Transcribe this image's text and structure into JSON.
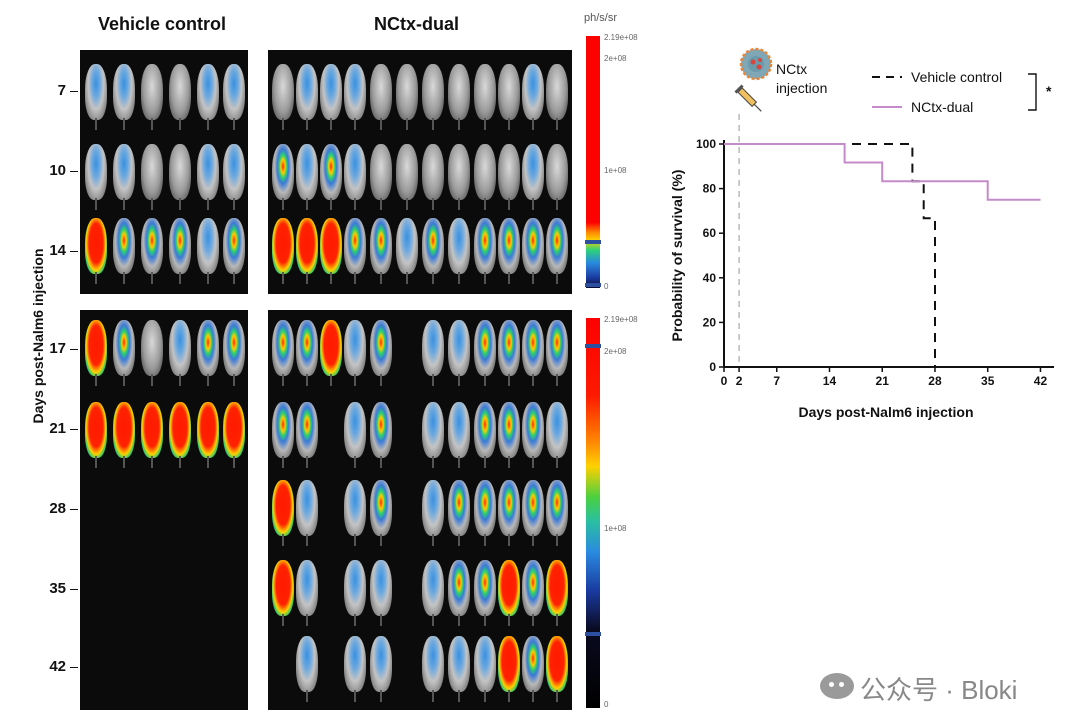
{
  "imaging": {
    "group_titles": [
      "Vehicle control",
      "NCtx-dual"
    ],
    "y_axis_label": "Days post-Nalm6 injection",
    "days": [
      "7",
      "10",
      "14",
      "17",
      "21",
      "28",
      "35",
      "42"
    ],
    "colorbar_unit": "ph/s/sr",
    "colorbar_top": {
      "max_label": "2.19e+08",
      "tick_high": "2e+08",
      "tick_mid": "1e+08",
      "tick_low": "0"
    },
    "colorbar_bottom": {
      "max_label": "2.19e+08",
      "tick_high": "2e+08",
      "tick_mid": "1e+08",
      "tick_low": "0"
    },
    "signal_colors": [
      "#ff0000",
      "#ffd000",
      "#33cc66",
      "#2a6ae0",
      "#000000"
    ]
  },
  "annotation": {
    "line1": "NCtx",
    "line2": "injection"
  },
  "significance": "*",
  "watermark": {
    "text": "公众号 · Bloki"
  },
  "chart_data": {
    "type": "line",
    "step": true,
    "title": "",
    "xlabel": "Days post-Nalm6 injection",
    "ylabel": "Probability of survival (%)",
    "xlim": [
      0,
      43
    ],
    "ylim": [
      0,
      100
    ],
    "xticks": [
      0,
      2,
      7,
      14,
      21,
      28,
      35,
      42
    ],
    "yticks": [
      0,
      20,
      40,
      60,
      80,
      100
    ],
    "injection_day": 2,
    "legend_position": "top-right",
    "series": [
      {
        "name": "Vehicle control",
        "color": "#111111",
        "dash": "dashed",
        "points": [
          [
            0,
            100
          ],
          [
            25,
            100
          ],
          [
            25,
            83.3
          ],
          [
            26.5,
            83.3
          ],
          [
            26.5,
            66.7
          ],
          [
            28,
            66.7
          ],
          [
            28,
            0
          ]
        ]
      },
      {
        "name": "NCtx-dual",
        "color": "#c58ac9",
        "dash": "solid",
        "points": [
          [
            0,
            100
          ],
          [
            16,
            100
          ],
          [
            16,
            91.7
          ],
          [
            21,
            91.7
          ],
          [
            21,
            83.3
          ],
          [
            35,
            83.3
          ],
          [
            35,
            75
          ],
          [
            42,
            75
          ]
        ]
      }
    ]
  }
}
